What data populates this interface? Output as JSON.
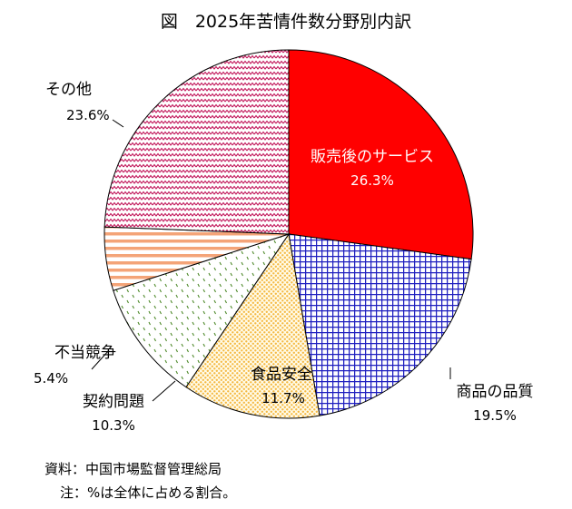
{
  "chart_data": {
    "type": "pie",
    "title": "図　2025年苦情件数分野別内訳",
    "unit": "%",
    "slices": [
      {
        "name": "販売後のサービス",
        "value": 26.3,
        "pct_label": "26.3%",
        "color": "#ff0000",
        "pattern": "solid"
      },
      {
        "name": "商品の品質",
        "value": 19.5,
        "pct_label": "19.5%",
        "color": "#1f1fbf",
        "pattern": "grid"
      },
      {
        "name": "食品安全",
        "value": 11.7,
        "pct_label": "11.7%",
        "color": "#f5b942",
        "pattern": "dots"
      },
      {
        "name": "契約問題",
        "value": 10.3,
        "pct_label": "10.3%",
        "color": "#4f8a2b",
        "pattern": "dashes"
      },
      {
        "name": "不当競争",
        "value": 5.4,
        "pct_label": "5.4%",
        "color": "#f4a478",
        "pattern": "stripes"
      },
      {
        "name": "その他",
        "value": 23.6,
        "pct_label": "23.6%",
        "color": "#c2185b",
        "pattern": "zigzag"
      }
    ],
    "legend": "none"
  },
  "notes": {
    "source": "資料：中国市場監督管理総局",
    "note": "注：%は全体に占める割合。"
  }
}
